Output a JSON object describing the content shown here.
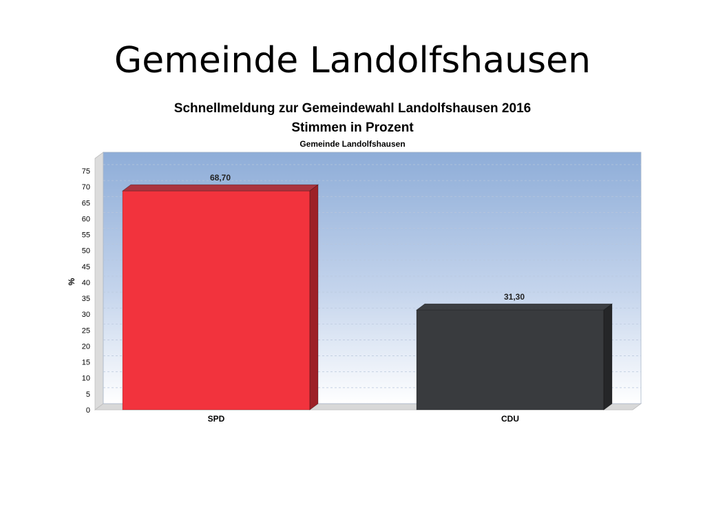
{
  "slide": {
    "title": "Gemeinde Landolfshausen"
  },
  "chart_data": {
    "type": "bar",
    "title": "Schnellmeldung zur Gemeindewahl Landolfshausen 2016",
    "subtitle": "Stimmen in Prozent",
    "subtitle2": "Gemeinde Landolfshausen",
    "ylabel": "%",
    "xlabel": "",
    "ylim": [
      0,
      75
    ],
    "ytick_step": 5,
    "grid": true,
    "categories": [
      "SPD",
      "CDU"
    ],
    "values": [
      68.7,
      31.3
    ],
    "value_labels": [
      "68,70",
      "31,30"
    ],
    "colors": [
      "#f2333d",
      "#393b3e"
    ]
  }
}
